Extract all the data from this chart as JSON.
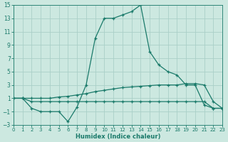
{
  "xlabel": "Humidex (Indice chaleur)",
  "bg_color": "#cce8e0",
  "grid_color": "#aacfc8",
  "line_color": "#1a7a6a",
  "xmin": 0,
  "xmax": 23,
  "ymin": -3,
  "ymax": 15,
  "yticks": [
    -3,
    -1,
    1,
    3,
    5,
    7,
    9,
    11,
    13,
    15
  ],
  "xticks": [
    0,
    1,
    2,
    3,
    4,
    5,
    6,
    7,
    8,
    9,
    10,
    11,
    12,
    13,
    14,
    15,
    16,
    17,
    18,
    19,
    20,
    21,
    22,
    23
  ],
  "line1_x": [
    0,
    1,
    2,
    3,
    4,
    5,
    6,
    7,
    8,
    9,
    10,
    11,
    12,
    13,
    14,
    15,
    16,
    17,
    18,
    19,
    20,
    21,
    22,
    23
  ],
  "line1_y": [
    1,
    1,
    -0.5,
    -1,
    -1,
    -1,
    -2.5,
    -0.3,
    3,
    10,
    13,
    13,
    13.5,
    14,
    15,
    8,
    6,
    5,
    4.5,
    3,
    3,
    0,
    -0.5,
    -0.5
  ],
  "line2_x": [
    0,
    1,
    2,
    3,
    4,
    5,
    6,
    7,
    8,
    9,
    10,
    11,
    12,
    13,
    14,
    15,
    16,
    17,
    18,
    19,
    20,
    21,
    22,
    23
  ],
  "line2_y": [
    1,
    1,
    1,
    1,
    1,
    1.2,
    1.3,
    1.5,
    1.7,
    2.0,
    2.2,
    2.4,
    2.6,
    2.7,
    2.8,
    2.9,
    3.0,
    3.0,
    3.0,
    3.2,
    3.2,
    3.0,
    0.5,
    -0.5
  ],
  "line3_x": [
    0,
    1,
    2,
    3,
    4,
    5,
    6,
    7,
    8,
    9,
    10,
    11,
    12,
    13,
    14,
    15,
    16,
    17,
    18,
    19,
    20,
    21,
    22,
    23
  ],
  "line3_y": [
    1,
    1,
    0.5,
    0.5,
    0.5,
    0.5,
    0.5,
    0.5,
    0.5,
    0.5,
    0.5,
    0.5,
    0.5,
    0.5,
    0.5,
    0.5,
    0.5,
    0.5,
    0.5,
    0.5,
    0.5,
    0.5,
    -0.5,
    -0.5
  ]
}
